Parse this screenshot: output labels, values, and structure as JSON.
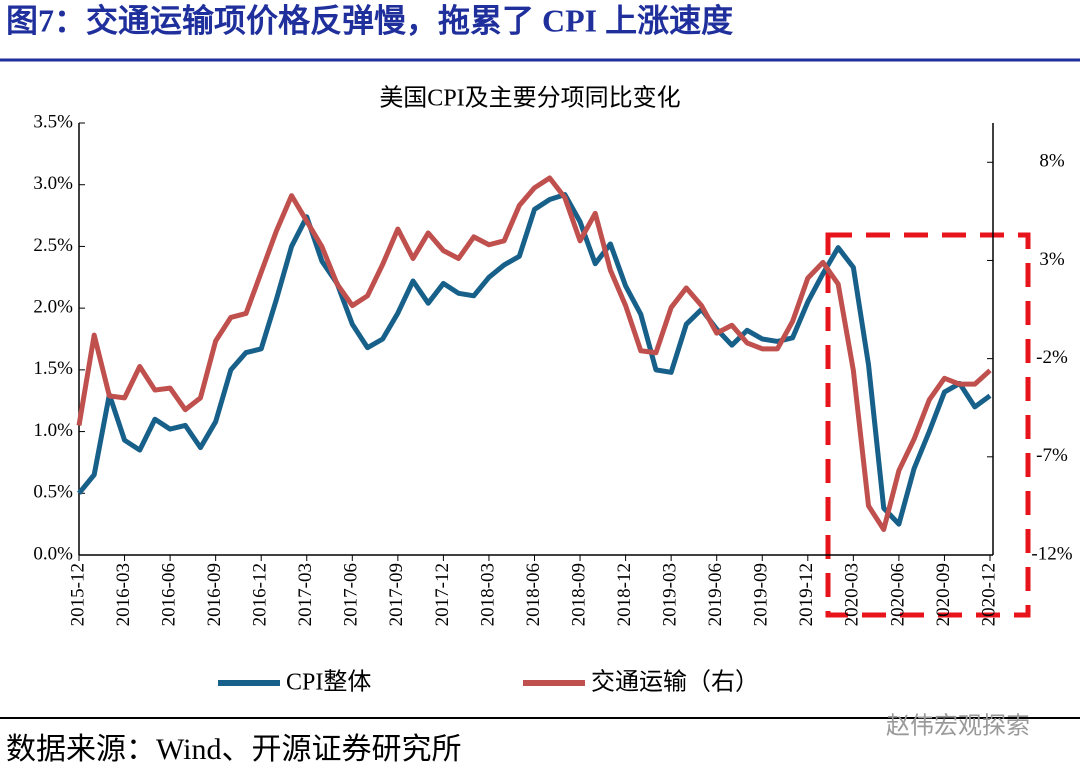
{
  "header": {
    "title": "图7：交通运输项价格反弹慢，拖累了 CPI 上涨速度"
  },
  "chart_data": {
    "type": "line",
    "title": "美国CPI及主要分项同比变化",
    "categories": [
      "2015-12",
      null,
      null,
      "2016-03",
      null,
      null,
      "2016-06",
      null,
      null,
      "2016-09",
      null,
      null,
      "2016-12",
      null,
      null,
      "2017-03",
      null,
      null,
      "2017-06",
      null,
      null,
      "2017-09",
      null,
      null,
      "2017-12",
      null,
      null,
      "2018-03",
      null,
      null,
      "2018-06",
      null,
      null,
      "2018-09",
      null,
      null,
      "2018-12",
      null,
      null,
      "2019-03",
      null,
      null,
      "2019-06",
      null,
      null,
      "2019-09",
      null,
      null,
      "2019-12",
      null,
      null,
      "2020-03",
      null,
      null,
      "2020-06",
      null,
      null,
      "2020-09",
      null,
      null,
      "2020-12"
    ],
    "series": [
      {
        "name": "CPI整体",
        "color": "#17608a",
        "values": [
          0.5,
          0.65,
          1.3,
          0.93,
          0.85,
          1.1,
          1.02,
          1.05,
          0.87,
          1.08,
          1.5,
          1.64,
          1.67,
          2.07,
          2.5,
          2.74,
          2.38,
          2.2,
          1.87,
          1.68,
          1.75,
          1.96,
          2.22,
          2.04,
          2.2,
          2.12,
          2.1,
          2.25,
          2.35,
          2.42,
          2.8,
          2.88,
          2.92,
          2.7,
          2.36,
          2.52,
          2.18,
          1.95,
          1.5,
          1.48,
          1.87,
          1.99,
          1.83,
          1.7,
          1.82,
          1.75,
          1.73,
          1.76,
          2.05,
          2.28,
          2.49,
          2.33,
          1.54,
          0.38,
          0.25,
          0.7,
          1.0,
          1.32,
          1.39,
          1.2,
          1.29
        ]
      },
      {
        "name": "交通运输（右）",
        "color": "#c0504d",
        "axis": "y2",
        "values": [
          -5.4,
          -0.8,
          -3.9,
          -4.0,
          -2.4,
          -3.6,
          -3.5,
          -4.6,
          -4.0,
          -1.1,
          0.1,
          0.3,
          2.4,
          4.5,
          6.3,
          5.0,
          3.7,
          1.8,
          0.7,
          1.2,
          2.8,
          4.6,
          3.1,
          4.4,
          3.5,
          3.1,
          4.2,
          3.8,
          4.0,
          5.8,
          6.7,
          7.2,
          6.2,
          4.0,
          5.4,
          2.5,
          0.7,
          -1.6,
          -1.7,
          0.6,
          1.6,
          0.7,
          -0.7,
          -0.3,
          -1.2,
          -1.5,
          -1.5,
          -0.1,
          2.1,
          2.9,
          1.8,
          -2.6,
          -9.5,
          -10.7,
          -7.7,
          -6.1,
          -4.1,
          -3.0,
          -3.3,
          -3.3,
          -2.6
        ]
      }
    ],
    "ylim": [
      0,
      3.5
    ],
    "yticks": [
      {
        "value": 0,
        "label": "0.0%"
      },
      {
        "value": 0.5,
        "label": "0.5%"
      },
      {
        "value": 1,
        "label": "1.0%"
      },
      {
        "value": 1.5,
        "label": "1.5%"
      },
      {
        "value": 2,
        "label": "2.0%"
      },
      {
        "value": 2.5,
        "label": "2.5%"
      },
      {
        "value": 3,
        "label": "3.0%"
      },
      {
        "value": 3.5,
        "label": "3.5%"
      }
    ],
    "y2lim": [
      -12,
      10
    ],
    "y2ticks": [
      {
        "value": -12,
        "label": "-12%"
      },
      {
        "value": -7,
        "label": "-7%"
      },
      {
        "value": -2,
        "label": "-2%"
      },
      {
        "value": 3,
        "label": "3%"
      },
      {
        "value": 8,
        "label": "8%"
      }
    ],
    "legend": "bottom"
  },
  "footer": {
    "source": "数据来源：Wind、开源证券研究所",
    "watermark": "赵伟宏观探索"
  }
}
